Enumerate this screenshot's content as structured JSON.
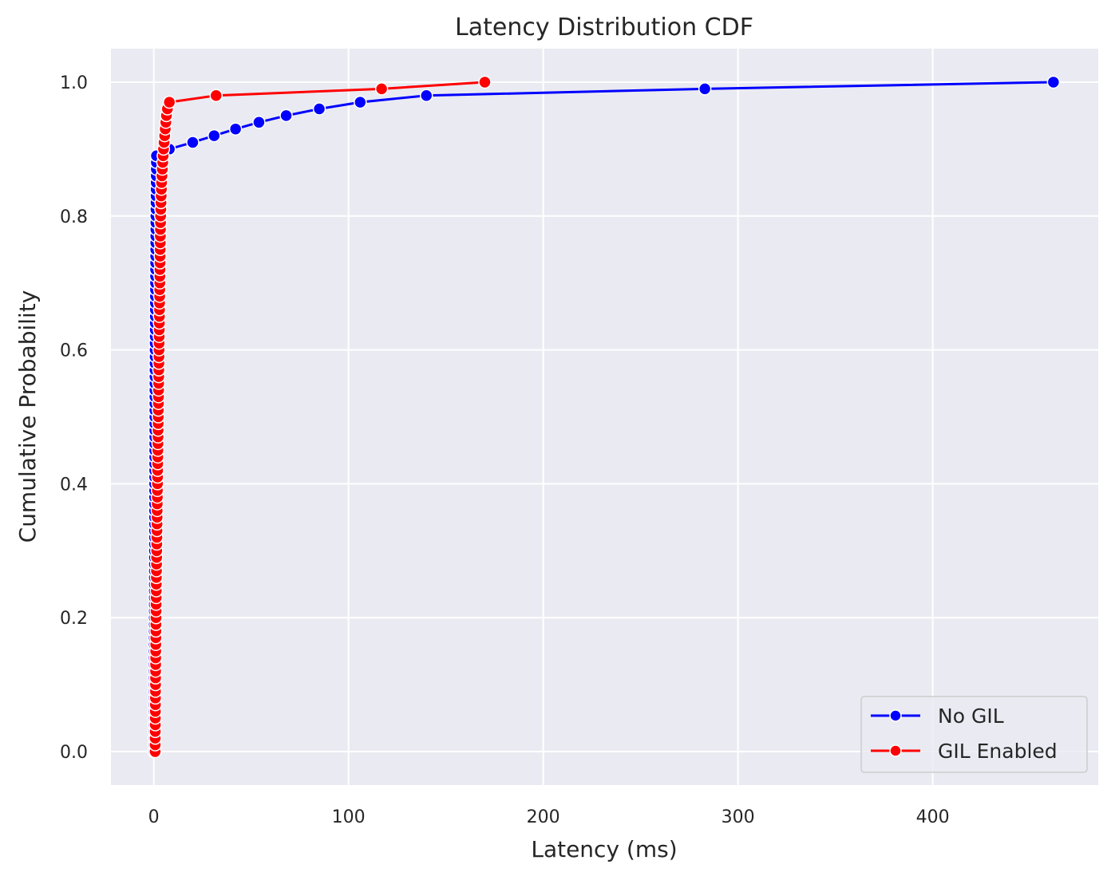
{
  "colors": {
    "plot_background": "#eaeaf2",
    "grid": "#ffffff",
    "no_gil": "#0000ff",
    "gil_enabled": "#ff0000",
    "marker_edge": "#ffffff",
    "text": "#262626"
  },
  "chart_data": {
    "type": "line",
    "title": "Latency Distribution CDF",
    "xlabel": "Latency (ms)",
    "ylabel": "Cumulative Probability",
    "xlim": [
      -22,
      485
    ],
    "ylim": [
      -0.05,
      1.05
    ],
    "x_ticks": [
      0,
      100,
      200,
      300,
      400
    ],
    "y_ticks": [
      0.0,
      0.2,
      0.4,
      0.6,
      0.8,
      1.0
    ],
    "x_tick_labels": [
      "0",
      "100",
      "200",
      "300",
      "400"
    ],
    "y_tick_labels": [
      "0.0",
      "0.2",
      "0.4",
      "0.6",
      "0.8",
      "1.0"
    ],
    "grid": true,
    "legend_position": "lower-right",
    "legend": [
      "No GIL",
      "GIL Enabled"
    ],
    "series": [
      {
        "name": "No GIL",
        "color": "#0000ff",
        "x": [
          0.05,
          0.06,
          0.07,
          0.08,
          0.09,
          0.1,
          0.11,
          0.12,
          0.13,
          0.14,
          0.15,
          0.16,
          0.17,
          0.18,
          0.19,
          0.2,
          0.21,
          0.22,
          0.23,
          0.24,
          0.25,
          0.26,
          0.27,
          0.28,
          0.29,
          0.3,
          0.31,
          0.32,
          0.33,
          0.34,
          0.35,
          0.36,
          0.37,
          0.38,
          0.39,
          0.4,
          0.41,
          0.42,
          0.43,
          0.44,
          0.45,
          0.46,
          0.47,
          0.48,
          0.49,
          0.5,
          0.51,
          0.52,
          0.53,
          0.54,
          0.55,
          0.56,
          0.57,
          0.58,
          0.59,
          0.6,
          0.62,
          0.64,
          0.66,
          0.68,
          0.7,
          0.72,
          0.74,
          0.76,
          0.78,
          0.8,
          0.82,
          0.84,
          0.86,
          0.88,
          0.9,
          0.92,
          0.94,
          0.96,
          0.98,
          1.0,
          1.02,
          1.04,
          1.06,
          1.08,
          1.1,
          1.13,
          1.16,
          1.19,
          1.22,
          1.25,
          1.28,
          1.31,
          1.34,
          1.37,
          8,
          20,
          31,
          42,
          54,
          68,
          85,
          106,
          140,
          283,
          462
        ],
        "y": [
          0.0,
          0.01,
          0.02,
          0.03,
          0.04,
          0.05,
          0.06,
          0.07,
          0.08,
          0.09,
          0.1,
          0.11,
          0.12,
          0.13,
          0.14,
          0.15,
          0.16,
          0.17,
          0.18,
          0.19,
          0.2,
          0.21,
          0.22,
          0.23,
          0.24,
          0.25,
          0.26,
          0.27,
          0.28,
          0.29,
          0.3,
          0.31,
          0.32,
          0.33,
          0.34,
          0.35,
          0.36,
          0.37,
          0.38,
          0.39,
          0.4,
          0.41,
          0.42,
          0.43,
          0.44,
          0.45,
          0.46,
          0.47,
          0.48,
          0.49,
          0.5,
          0.51,
          0.52,
          0.53,
          0.54,
          0.55,
          0.56,
          0.57,
          0.58,
          0.59,
          0.6,
          0.61,
          0.62,
          0.63,
          0.64,
          0.65,
          0.66,
          0.67,
          0.68,
          0.69,
          0.7,
          0.71,
          0.72,
          0.73,
          0.74,
          0.75,
          0.76,
          0.77,
          0.78,
          0.79,
          0.8,
          0.81,
          0.82,
          0.83,
          0.84,
          0.85,
          0.86,
          0.87,
          0.88,
          0.89,
          0.9,
          0.91,
          0.92,
          0.93,
          0.94,
          0.95,
          0.96,
          0.97,
          0.98,
          0.99,
          1.0
        ]
      },
      {
        "name": "GIL Enabled",
        "color": "#ff0000",
        "x": [
          0.7,
          0.72,
          0.74,
          0.76,
          0.78,
          0.8,
          0.82,
          0.84,
          0.86,
          0.88,
          0.9,
          0.92,
          0.94,
          0.96,
          0.98,
          1.0,
          1.03,
          1.06,
          1.09,
          1.12,
          1.15,
          1.18,
          1.21,
          1.24,
          1.27,
          1.3,
          1.34,
          1.38,
          1.42,
          1.46,
          1.5,
          1.54,
          1.58,
          1.62,
          1.66,
          1.7,
          1.74,
          1.78,
          1.82,
          1.86,
          1.9,
          1.94,
          1.98,
          2.02,
          2.06,
          2.1,
          2.14,
          2.18,
          2.22,
          2.26,
          2.3,
          2.34,
          2.38,
          2.42,
          2.46,
          2.5,
          2.54,
          2.58,
          2.62,
          2.66,
          2.7,
          2.74,
          2.78,
          2.82,
          2.86,
          2.9,
          2.94,
          2.98,
          3.02,
          3.06,
          3.1,
          3.14,
          3.18,
          3.22,
          3.26,
          3.3,
          3.34,
          3.38,
          3.42,
          3.46,
          3.5,
          3.6,
          3.7,
          3.8,
          3.9,
          4.0,
          4.2,
          4.4,
          4.6,
          4.8,
          5.0,
          5.3,
          5.6,
          5.9,
          6.2,
          6.5,
          7.0,
          8.0,
          32,
          117,
          170
        ],
        "y": [
          0.0,
          0.01,
          0.02,
          0.03,
          0.04,
          0.05,
          0.06,
          0.07,
          0.08,
          0.09,
          0.1,
          0.11,
          0.12,
          0.13,
          0.14,
          0.15,
          0.16,
          0.17,
          0.18,
          0.19,
          0.2,
          0.21,
          0.22,
          0.23,
          0.24,
          0.25,
          0.26,
          0.27,
          0.28,
          0.29,
          0.3,
          0.31,
          0.32,
          0.33,
          0.34,
          0.35,
          0.36,
          0.37,
          0.38,
          0.39,
          0.4,
          0.41,
          0.42,
          0.43,
          0.44,
          0.45,
          0.46,
          0.47,
          0.48,
          0.49,
          0.5,
          0.51,
          0.52,
          0.53,
          0.54,
          0.55,
          0.56,
          0.57,
          0.58,
          0.59,
          0.6,
          0.61,
          0.62,
          0.63,
          0.64,
          0.65,
          0.66,
          0.67,
          0.68,
          0.69,
          0.7,
          0.71,
          0.72,
          0.73,
          0.74,
          0.75,
          0.76,
          0.77,
          0.78,
          0.79,
          0.8,
          0.81,
          0.82,
          0.83,
          0.84,
          0.85,
          0.86,
          0.87,
          0.88,
          0.89,
          0.9,
          0.91,
          0.92,
          0.93,
          0.94,
          0.95,
          0.96,
          0.97,
          0.98,
          0.99,
          1.0
        ]
      }
    ]
  }
}
